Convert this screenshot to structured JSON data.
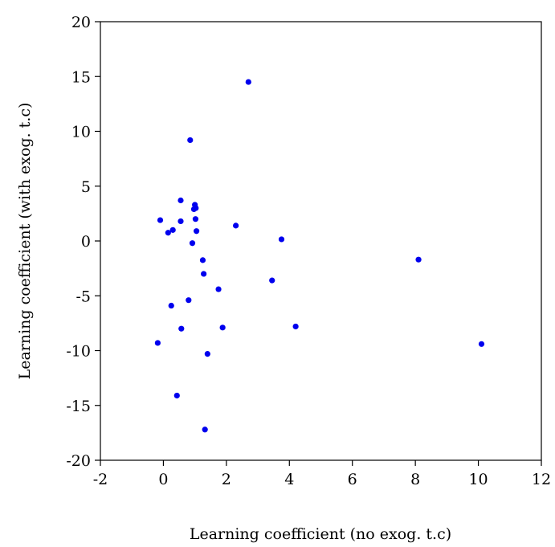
{
  "chart_data": {
    "type": "scatter",
    "xlabel": "Learning coefficient (no exog. t.c)",
    "ylabel": "Learning coefficient (with exog. t.c)",
    "xlim": [
      -2,
      12
    ],
    "ylim": [
      -20,
      20
    ],
    "xticks": [
      "-2",
      "0",
      "2",
      "4",
      "6",
      "8",
      "10",
      "12"
    ],
    "yticks": [
      "20",
      "15",
      "10",
      "5",
      "0",
      "-5",
      "-10",
      "-15",
      "-20"
    ],
    "grid": false,
    "legend": "none",
    "marker_color": "#0000ee",
    "series": [
      {
        "points": [
          [
            2.7,
            14.5
          ],
          [
            0.85,
            9.2
          ],
          [
            0.55,
            3.7
          ],
          [
            1.0,
            3.3
          ],
          [
            0.97,
            2.9
          ],
          [
            1.03,
            3.0
          ],
          [
            -0.1,
            1.9
          ],
          [
            0.55,
            1.8
          ],
          [
            1.02,
            2.0
          ],
          [
            2.3,
            1.4
          ],
          [
            0.3,
            1.0
          ],
          [
            0.15,
            0.75
          ],
          [
            1.05,
            0.9
          ],
          [
            3.75,
            0.15
          ],
          [
            0.92,
            -0.2
          ],
          [
            8.1,
            -1.7
          ],
          [
            1.25,
            -1.75
          ],
          [
            1.28,
            -3.0
          ],
          [
            3.45,
            -3.6
          ],
          [
            1.75,
            -4.4
          ],
          [
            0.8,
            -5.4
          ],
          [
            0.25,
            -5.9
          ],
          [
            0.57,
            -8.0
          ],
          [
            1.88,
            -7.9
          ],
          [
            4.2,
            -7.8
          ],
          [
            -0.18,
            -9.3
          ],
          [
            1.4,
            -10.3
          ],
          [
            10.1,
            -9.4
          ],
          [
            0.43,
            -14.1
          ],
          [
            1.32,
            -17.2
          ]
        ]
      }
    ]
  }
}
